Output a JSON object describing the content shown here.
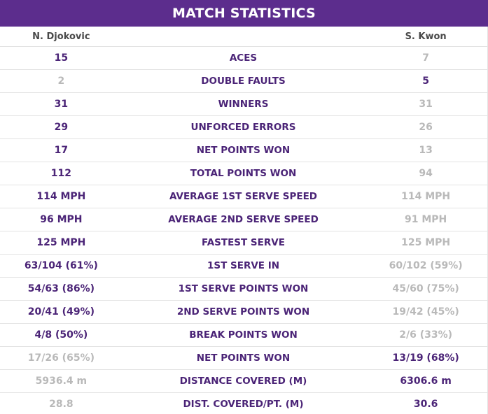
{
  "header": {
    "title": "MATCH STATISTICS"
  },
  "players": {
    "left": "N. Djokovic",
    "right": "S. Kwon"
  },
  "colors": {
    "header_bg": "#5c2d8d",
    "leader": "#4b2477",
    "trailer": "#b9b9b9",
    "divider": "#e3e3e3"
  },
  "stats": [
    {
      "label": "ACES",
      "left": "15",
      "right": "7",
      "leader": "left"
    },
    {
      "label": "DOUBLE FAULTS",
      "left": "2",
      "right": "5",
      "leader": "right"
    },
    {
      "label": "WINNERS",
      "left": "31",
      "right": "31",
      "leader": "left"
    },
    {
      "label": "UNFORCED ERRORS",
      "left": "29",
      "right": "26",
      "leader": "left"
    },
    {
      "label": "NET POINTS WON",
      "left": "17",
      "right": "13",
      "leader": "left"
    },
    {
      "label": "TOTAL POINTS WON",
      "left": "112",
      "right": "94",
      "leader": "left"
    },
    {
      "label": "AVERAGE 1ST SERVE SPEED",
      "left": "114 MPH",
      "right": "114 MPH",
      "leader": "left"
    },
    {
      "label": "AVERAGE 2ND SERVE SPEED",
      "left": "96 MPH",
      "right": "91 MPH",
      "leader": "left"
    },
    {
      "label": "FASTEST SERVE",
      "left": "125 MPH",
      "right": "125 MPH",
      "leader": "left"
    },
    {
      "label": "1ST SERVE IN",
      "left": "63/104 (61%)",
      "right": "60/102 (59%)",
      "leader": "left"
    },
    {
      "label": "1ST SERVE POINTS WON",
      "left": "54/63 (86%)",
      "right": "45/60 (75%)",
      "leader": "left"
    },
    {
      "label": "2ND SERVE POINTS WON",
      "left": "20/41 (49%)",
      "right": "19/42 (45%)",
      "leader": "left"
    },
    {
      "label": "BREAK POINTS WON",
      "left": "4/8 (50%)",
      "right": "2/6 (33%)",
      "leader": "left"
    },
    {
      "label": "NET POINTS WON",
      "left": "17/26 (65%)",
      "right": "13/19 (68%)",
      "leader": "right"
    },
    {
      "label": "DISTANCE COVERED (M)",
      "left": "5936.4 m",
      "right": "6306.6 m",
      "leader": "right"
    },
    {
      "label": "DIST. COVERED/PT. (M)",
      "left": "28.8",
      "right": "30.6",
      "leader": "right"
    }
  ]
}
